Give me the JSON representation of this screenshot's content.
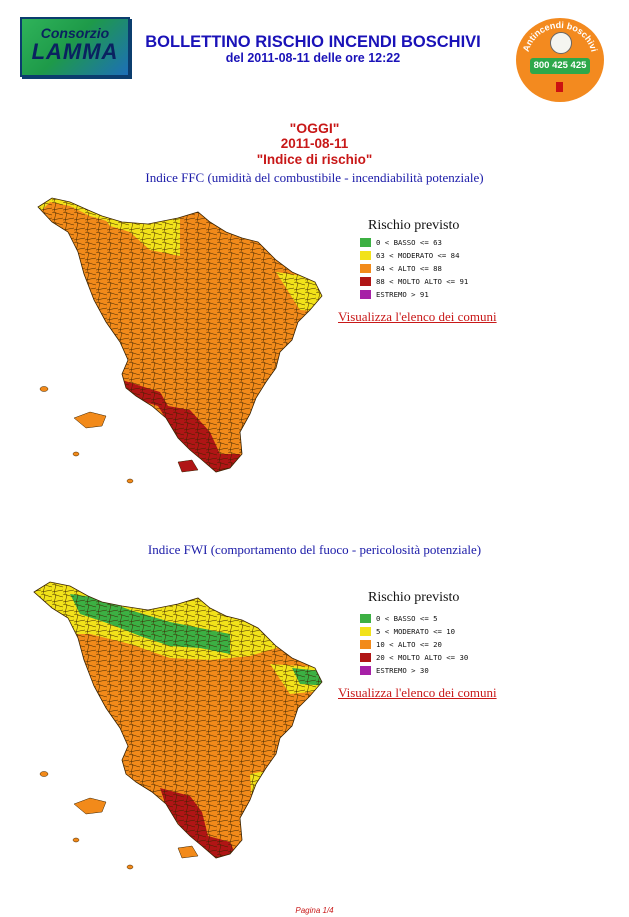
{
  "header": {
    "logo_line1": "Consorzio",
    "logo_line2": "LAMMA",
    "title": "BOLLETTINO RISCHIO INCENDI BOSCHIVI",
    "subtitle": "del 2011-08-11 delle ore 12:22",
    "badge_text": "Antincendi boschivi",
    "badge_phone": "800 425 425"
  },
  "section": {
    "oggi": "\"OGGI\"",
    "date": "2011-08-11",
    "indice": "\"Indice di rischio\""
  },
  "ffc": {
    "heading": "Indice FFC (umidità del combustibile - incendiabilità potenziale)",
    "legend_title": "Rischio previsto",
    "legend": [
      {
        "label": "0 < BASSO <= 63",
        "color": "#3cb043"
      },
      {
        "label": "63 < MODERATO <= 84",
        "color": "#f2e21a"
      },
      {
        "label": "84 < ALTO <= 88",
        "color": "#f28a1a"
      },
      {
        "label": "88 < MOLTO ALTO <= 91",
        "color": "#b01515"
      },
      {
        "label": "ESTREMO > 91",
        "color": "#a620a6"
      }
    ],
    "link": "Visualizza l'elenco dei comuni"
  },
  "fwi": {
    "heading": "Indice FWI (comportamento del fuoco - pericolosità potenziale)",
    "legend_title": "Rischio previsto",
    "legend": [
      {
        "label": "0 < BASSO <= 5",
        "color": "#3cb043"
      },
      {
        "label": "5 < MODERATO <= 10",
        "color": "#f2e21a"
      },
      {
        "label": "10 < ALTO <= 20",
        "color": "#f28a1a"
      },
      {
        "label": "20 < MOLTO ALTO <= 30",
        "color": "#b01515"
      },
      {
        "label": "ESTREMO > 30",
        "color": "#a620a6"
      }
    ],
    "link": "Visualizza l'elenco dei comuni"
  },
  "footer": "Pagina 1/4"
}
